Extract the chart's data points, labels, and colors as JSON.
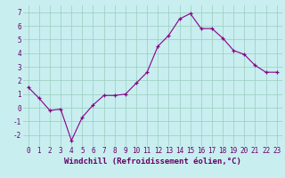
{
  "xlabel": "Windchill (Refroidissement éolien,°C)",
  "x": [
    0,
    1,
    2,
    3,
    4,
    5,
    6,
    7,
    8,
    9,
    10,
    11,
    12,
    13,
    14,
    15,
    16,
    17,
    18,
    19,
    20,
    21,
    22,
    23
  ],
  "y": [
    1.5,
    0.7,
    -0.2,
    -0.1,
    -2.4,
    -0.7,
    0.2,
    0.9,
    0.9,
    1.0,
    1.8,
    2.6,
    4.5,
    5.3,
    6.5,
    6.9,
    5.8,
    5.8,
    5.1,
    4.2,
    3.9,
    3.1,
    2.6,
    2.6
  ],
  "ylim": [
    -2.8,
    7.5
  ],
  "yticks": [
    -2,
    -1,
    0,
    1,
    2,
    3,
    4,
    5,
    6,
    7
  ],
  "xticks": [
    0,
    1,
    2,
    3,
    4,
    5,
    6,
    7,
    8,
    9,
    10,
    11,
    12,
    13,
    14,
    15,
    16,
    17,
    18,
    19,
    20,
    21,
    22,
    23
  ],
  "line_color": "#880088",
  "marker": "+",
  "bg_color": "#c8eef0",
  "grid_color": "#99ccbb",
  "axis_label_color": "#660066",
  "tick_label_color": "#660066",
  "tick_label_fontsize": 5.5,
  "xlabel_fontsize": 6.5
}
